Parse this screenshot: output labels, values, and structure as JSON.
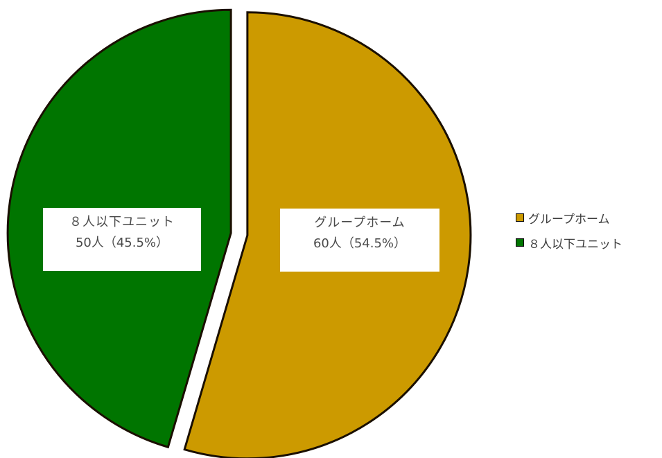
{
  "chart_data": {
    "type": "pie",
    "title": "",
    "slices": [
      {
        "label": "グループホーム",
        "value": 60,
        "percent": 54.5,
        "color": "#CC9A00",
        "data_label_line1": "グループホーム",
        "data_label_line2": "60人（54.5%）"
      },
      {
        "label": "８人以下ユニット",
        "value": 50,
        "percent": 45.5,
        "color": "#007500",
        "data_label_line1": "８人以下ユニット",
        "data_label_line2": "50人（45.5%）"
      }
    ],
    "legend": {
      "position": "right",
      "items": [
        "グループホーム",
        "８人以下ユニット"
      ]
    },
    "exploded": true
  }
}
